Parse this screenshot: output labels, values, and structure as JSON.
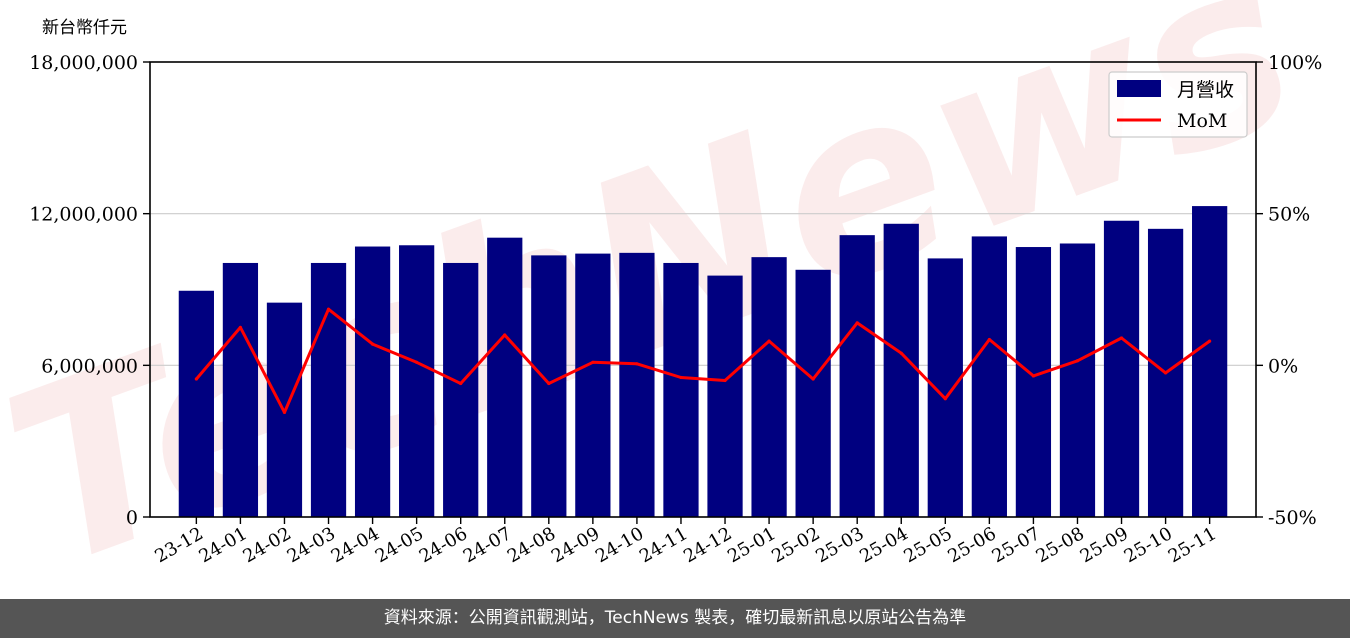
{
  "chart_data": {
    "type": "bar",
    "ylabel": "新台幣仟元",
    "categories": [
      "23-12",
      "24-01",
      "24-02",
      "24-03",
      "24-04",
      "24-05",
      "24-06",
      "24-07",
      "24-08",
      "24-09",
      "24-10",
      "24-11",
      "24-12",
      "25-01",
      "25-02",
      "25-03",
      "25-04",
      "25-05",
      "25-06",
      "25-07",
      "25-08",
      "25-09",
      "25-10",
      "25-11"
    ],
    "series": [
      {
        "name": "月營收",
        "axis": "left",
        "color": "#000080",
        "values": [
          8950000,
          10050000,
          8480000,
          10050000,
          10700000,
          10750000,
          10050000,
          11050000,
          10350000,
          10420000,
          10450000,
          10050000,
          9550000,
          10280000,
          9780000,
          11150000,
          11600000,
          10230000,
          11100000,
          10680000,
          10820000,
          11720000,
          11400000,
          12300000
        ]
      },
      {
        "name": "MoM",
        "axis": "right",
        "type": "line",
        "color": "#ff0000",
        "values": [
          -4.5,
          12.5,
          -15.5,
          18.5,
          7,
          1,
          -6,
          10,
          -6,
          1,
          0.5,
          -4,
          -5,
          8,
          -4.5,
          14,
          4,
          -11,
          8.5,
          -3.5,
          1.5,
          9,
          -2.5,
          8
        ]
      }
    ],
    "left_axis": {
      "ylim": [
        0,
        18000000
      ],
      "ticks": [
        0,
        6000000,
        12000000,
        18000000
      ],
      "tick_labels": [
        "0",
        "6,000,000",
        "12,000,000",
        "18,000,000"
      ]
    },
    "right_axis": {
      "ylim": [
        -50,
        100
      ],
      "ticks": [
        -50,
        0,
        50,
        100
      ],
      "tick_labels": [
        "-50%",
        "0%",
        "50%",
        "100%"
      ]
    },
    "grid": "horizontal",
    "legend": "top-right"
  },
  "footer": {
    "source_text": "資料來源：公開資訊觀測站，TechNews 製表，確切最新訊息以原站公告為準"
  },
  "watermark": {
    "text": "TechNews"
  }
}
